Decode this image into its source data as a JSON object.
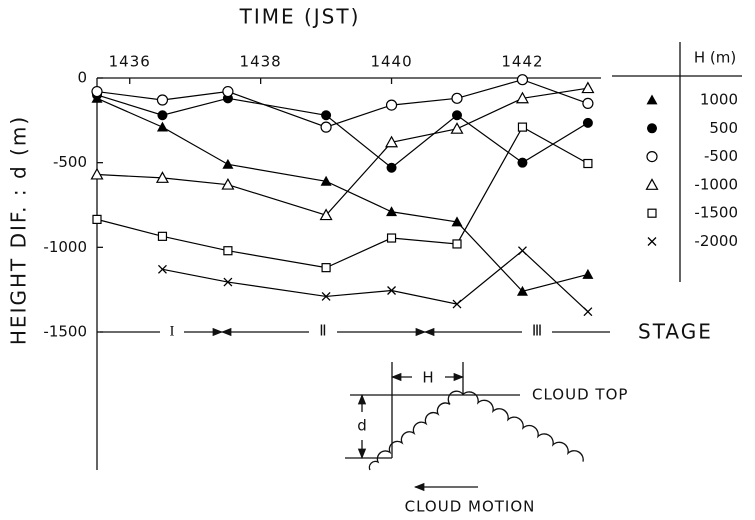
{
  "chart_data": {
    "type": "line",
    "title": "TIME (JST)",
    "y_label": "HEIGHT DIF. : d (m)",
    "x": [
      1435.5,
      1436.5,
      1437.5,
      1439,
      1440,
      1441,
      1442,
      1443
    ],
    "xlim": [
      1435.5,
      1443.2
    ],
    "xticks": [
      1436,
      1438,
      1440,
      1442
    ],
    "ylim": [
      -1500,
      0
    ],
    "yticks": [
      0,
      -500,
      -1000,
      -1500
    ],
    "legend_title": "H (m)",
    "series": [
      {
        "name": "1000",
        "color": "#000",
        "marker": "filled-triangle",
        "values": [
          -120,
          -290,
          -510,
          -610,
          -790,
          -850,
          -1260,
          -1160
        ]
      },
      {
        "name": "500",
        "color": "#000",
        "marker": "filled-circle",
        "values": [
          -100,
          -220,
          -120,
          -220,
          -530,
          -220,
          -500,
          -265
        ]
      },
      {
        "name": "-500",
        "color": "#000",
        "marker": "open-circle",
        "values": [
          -80,
          -130,
          -80,
          -290,
          -160,
          -120,
          -10,
          -150
        ]
      },
      {
        "name": "-1000",
        "color": "#000",
        "marker": "open-triangle",
        "values": [
          -570,
          -590,
          -630,
          -810,
          -380,
          -300,
          -120,
          -60
        ]
      },
      {
        "name": "-1500",
        "color": "#000",
        "marker": "open-square",
        "values": [
          -835,
          -935,
          -1020,
          -1120,
          -945,
          -980,
          -290,
          -505
        ]
      },
      {
        "name": "-2000",
        "color": "#000",
        "marker": "cross",
        "values": [
          null,
          -1130,
          -1205,
          -1290,
          -1255,
          -1335,
          -1020,
          -1380
        ]
      }
    ],
    "stages": [
      "I",
      "Ⅱ",
      "Ⅲ"
    ],
    "stage_label": "STAGE",
    "diagram": {
      "h_label": "H",
      "d_label": "d",
      "cloud_top": "CLOUD TOP",
      "cloud_motion": "CLOUD MOTION"
    }
  }
}
